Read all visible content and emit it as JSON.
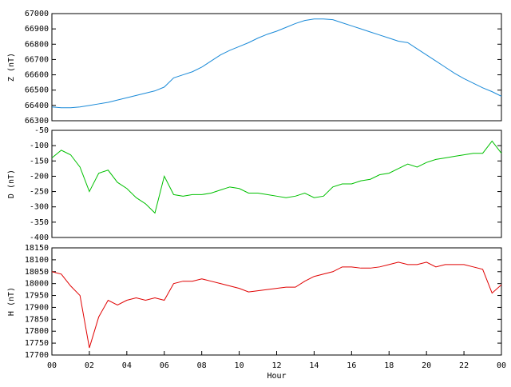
{
  "chart_data": [
    {
      "type": "line",
      "ylabel": "Z (nT)",
      "xlim": [
        0,
        24
      ],
      "ylim": [
        66300,
        67000
      ],
      "yticks": [
        66300,
        66400,
        66500,
        66600,
        66700,
        66800,
        66900,
        67000
      ],
      "x": [
        0,
        0.5,
        1,
        1.5,
        2,
        2.5,
        3,
        3.5,
        4,
        4.5,
        5,
        5.5,
        6,
        6.5,
        7,
        7.5,
        8,
        8.5,
        9,
        9.5,
        10,
        10.5,
        11,
        11.5,
        12,
        12.5,
        13,
        13.5,
        14,
        14.5,
        15,
        15.5,
        16,
        16.5,
        17,
        17.5,
        18,
        18.5,
        19,
        19.5,
        20,
        20.5,
        21,
        21.5,
        22,
        22.5,
        23,
        23.5,
        24
      ],
      "series": [
        {
          "color": "#1a8ad8",
          "values": [
            66390,
            66385,
            66385,
            66390,
            66400,
            66410,
            66420,
            66435,
            66450,
            66465,
            66480,
            66495,
            66520,
            66580,
            66600,
            66620,
            66650,
            66690,
            66730,
            66760,
            66785,
            66810,
            66840,
            66865,
            66885,
            66910,
            66935,
            66955,
            66965,
            66965,
            66960,
            66940,
            66920,
            66900,
            66880,
            66860,
            66840,
            66820,
            66810,
            66770,
            66730,
            66690,
            66650,
            66610,
            66575,
            66545,
            66515,
            66490,
            66460
          ]
        }
      ]
    },
    {
      "type": "line",
      "ylabel": "D (nT)",
      "xlim": [
        0,
        24
      ],
      "ylim": [
        -400,
        -50
      ],
      "yticks": [
        -400,
        -350,
        -300,
        -250,
        -200,
        -150,
        -100,
        -50
      ],
      "x": [
        0,
        0.5,
        1,
        1.5,
        2,
        2.5,
        3,
        3.5,
        4,
        4.5,
        5,
        5.5,
        6,
        6.5,
        7,
        7.5,
        8,
        8.5,
        9,
        9.5,
        10,
        10.5,
        11,
        11.5,
        12,
        12.5,
        13,
        13.5,
        14,
        14.5,
        15,
        15.5,
        16,
        16.5,
        17,
        17.5,
        18,
        18.5,
        19,
        19.5,
        20,
        20.5,
        21,
        21.5,
        22,
        22.5,
        23,
        23.5,
        24
      ],
      "series": [
        {
          "color": "#00c000",
          "values": [
            -140,
            -115,
            -130,
            -170,
            -250,
            -190,
            -180,
            -220,
            -240,
            -270,
            -290,
            -320,
            -200,
            -260,
            -265,
            -260,
            -260,
            -255,
            -245,
            -235,
            -240,
            -255,
            -255,
            -260,
            -265,
            -270,
            -265,
            -255,
            -270,
            -265,
            -235,
            -225,
            -225,
            -215,
            -210,
            -195,
            -190,
            -175,
            -160,
            -170,
            -155,
            -145,
            -140,
            -135,
            -130,
            -125,
            -125,
            -85,
            -125
          ]
        }
      ]
    },
    {
      "type": "line",
      "ylabel": "H (nT)",
      "xlabel": "Hour",
      "xlim": [
        0,
        24
      ],
      "ylim": [
        17700,
        18150
      ],
      "yticks": [
        17700,
        17750,
        17800,
        17850,
        17900,
        17950,
        18000,
        18050,
        18100,
        18150
      ],
      "xticks": [
        {
          "value": 0,
          "label": "00"
        },
        {
          "value": 2,
          "label": "02"
        },
        {
          "value": 4,
          "label": "04"
        },
        {
          "value": 6,
          "label": "06"
        },
        {
          "value": 8,
          "label": "08"
        },
        10,
        12,
        14,
        16,
        18,
        20,
        22,
        {
          "value": 24,
          "label": "00"
        }
      ],
      "x": [
        0,
        0.5,
        1,
        1.5,
        2,
        2.5,
        3,
        3.5,
        4,
        4.5,
        5,
        5.5,
        6,
        6.5,
        7,
        7.5,
        8,
        8.5,
        9,
        9.5,
        10,
        10.5,
        11,
        11.5,
        12,
        12.5,
        13,
        13.5,
        14,
        14.5,
        15,
        15.5,
        16,
        16.5,
        17,
        17.5,
        18,
        18.5,
        19,
        19.5,
        20,
        20.5,
        21,
        21.5,
        22,
        22.5,
        23,
        23.5,
        24
      ],
      "series": [
        {
          "color": "#e00000",
          "values": [
            18050,
            18040,
            17990,
            17950,
            17730,
            17860,
            17930,
            17910,
            17930,
            17940,
            17930,
            17940,
            17930,
            18000,
            18010,
            18010,
            18020,
            18010,
            18000,
            17990,
            17980,
            17965,
            17970,
            17975,
            17980,
            17985,
            17985,
            18010,
            18030,
            18040,
            18050,
            18070,
            18070,
            18065,
            18065,
            18070,
            18080,
            18090,
            18080,
            18080,
            18090,
            18070,
            18080,
            18080,
            18080,
            18070,
            18060,
            17960,
            17995
          ]
        }
      ]
    }
  ]
}
